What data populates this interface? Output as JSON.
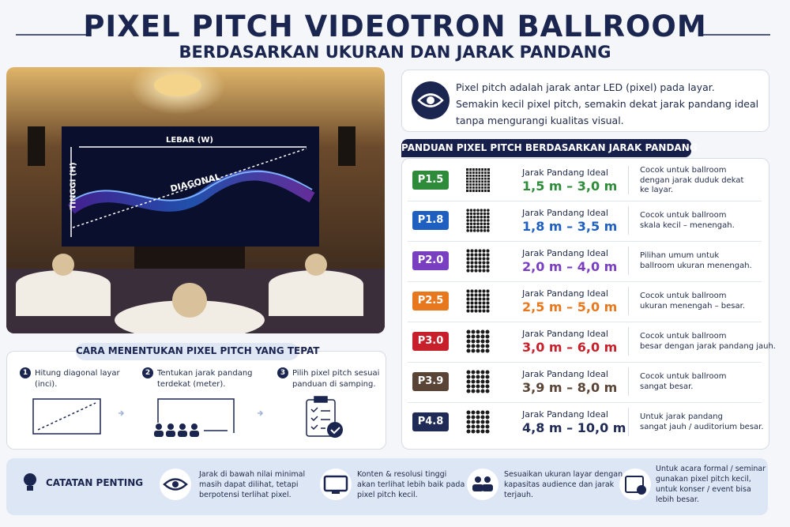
{
  "header": {
    "title": "PIXEL PITCH VIDEOTRON BALLROOM",
    "subtitle": "BERDASARKAN UKURAN DAN JARAK PANDANG"
  },
  "photo": {
    "width_label": "LEBAR (W)",
    "height_label": "TINGGI (H)",
    "diagonal_label": "DIAGONAL"
  },
  "intro": {
    "lines": [
      "Pixel pitch adalah jarak antar LED (pixel) pada layar.",
      "Semakin kecil pixel pitch, semakin dekat jarak pandang ideal",
      "tanpa mengurangi kualitas visual."
    ]
  },
  "guide": {
    "title": "PANDUAN PIXEL PITCH BERDASARKAN JARAK PANDANG",
    "rows": [
      {
        "pitch": "P1.5",
        "color": "#2e8b3a",
        "label": "Jarak Pandang Ideal",
        "range": "1,5 m – 3,0 m",
        "note": [
          "Cocok untuk ballroom",
          "dengan jarak duduk dekat",
          "ke layar."
        ]
      },
      {
        "pitch": "P1.8",
        "color": "#1f5fbf",
        "label": "Jarak Pandang Ideal",
        "range": "1,8 m – 3,5 m",
        "note": [
          "Cocok untuk ballroom",
          "skala kecil – menengah."
        ]
      },
      {
        "pitch": "P2.0",
        "color": "#7a3fc0",
        "label": "Jarak Pandang Ideal",
        "range": "2,0 m – 4,0 m",
        "note": [
          "Pilihan umum untuk",
          "ballroom ukuran menengah."
        ]
      },
      {
        "pitch": "P2.5",
        "color": "#e8781e",
        "label": "Jarak Pandang Ideal",
        "range": "2,5 m – 5,0 m",
        "note": [
          "Cocok untuk ballroom",
          "ukuran menengah – besar."
        ]
      },
      {
        "pitch": "P3.0",
        "color": "#c8202a",
        "label": "Jarak Pandang Ideal",
        "range": "3,0 m – 6,0 m",
        "note": [
          "Cocok untuk ballroom",
          "besar dengan jarak pandang jauh."
        ]
      },
      {
        "pitch": "P3.9",
        "color": "#5a4436",
        "label": "Jarak Pandang Ideal",
        "range": "3,9 m – 8,0 m",
        "note": [
          "Cocok untuk ballroom",
          "sangat besar."
        ]
      },
      {
        "pitch": "P4.8",
        "color": "#1f2a56",
        "label": "Jarak Pandang Ideal",
        "range": "4,8 m – 10,0 m",
        "note": [
          "Untuk jarak pandang",
          "sangat jauh / auditorium besar."
        ]
      }
    ]
  },
  "steps": {
    "title": "CARA MENENTUKAN PIXEL PITCH YANG TEPAT",
    "items": [
      {
        "number": "1",
        "text": [
          "Hitung diagonal layar",
          "(inci)."
        ]
      },
      {
        "number": "2",
        "text": [
          "Tentukan jarak pandang",
          "terdekat (meter)."
        ]
      },
      {
        "number": "3",
        "text": [
          "Pilih pixel pitch sesuai",
          "panduan di samping."
        ]
      }
    ]
  },
  "notes": {
    "title": "CATATAN PENTING",
    "items": [
      [
        "Jarak di bawah nilai minimal",
        "masih dapat dilihat, tetapi",
        "berpotensi terlihat pixel."
      ],
      [
        "Konten & resolusi tinggi",
        "akan terlihat lebih baik pada",
        "pixel pitch kecil."
      ],
      [
        "Sesuaikan ukuran layar dengan",
        "kapasitas audience dan jarak",
        "terjauh."
      ],
      [
        "Untuk acara formal / seminar",
        "gunakan pixel pitch kecil,",
        "untuk konser / event bisa",
        "lebih besar."
      ]
    ]
  }
}
